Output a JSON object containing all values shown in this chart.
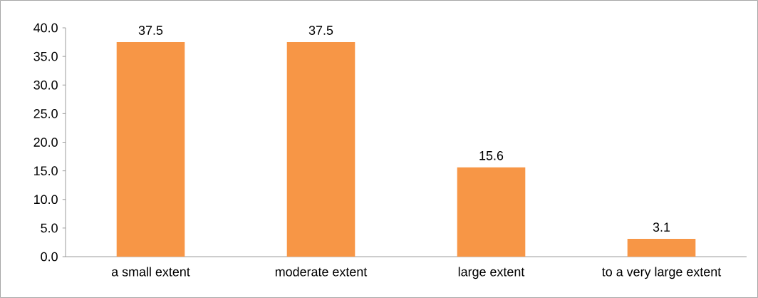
{
  "chart_data": {
    "type": "bar",
    "categories": [
      "a small extent",
      "moderate extent",
      "large extent",
      "to a very large extent"
    ],
    "values": [
      37.5,
      37.5,
      15.6,
      3.1
    ],
    "color": "#f79646",
    "ylim": [
      0,
      40
    ],
    "yticks": [
      {
        "value": 0,
        "label": "0.0"
      },
      {
        "value": 5,
        "label": "5.0"
      },
      {
        "value": 10,
        "label": "10.0"
      },
      {
        "value": 15,
        "label": "15.0"
      },
      {
        "value": 20,
        "label": "20.0"
      },
      {
        "value": 25,
        "label": "25.0"
      },
      {
        "value": 30,
        "label": "30.0"
      },
      {
        "value": 35,
        "label": "35.0"
      },
      {
        "value": 40,
        "label": "40.0"
      }
    ],
    "data_labels": true,
    "grid": false
  }
}
